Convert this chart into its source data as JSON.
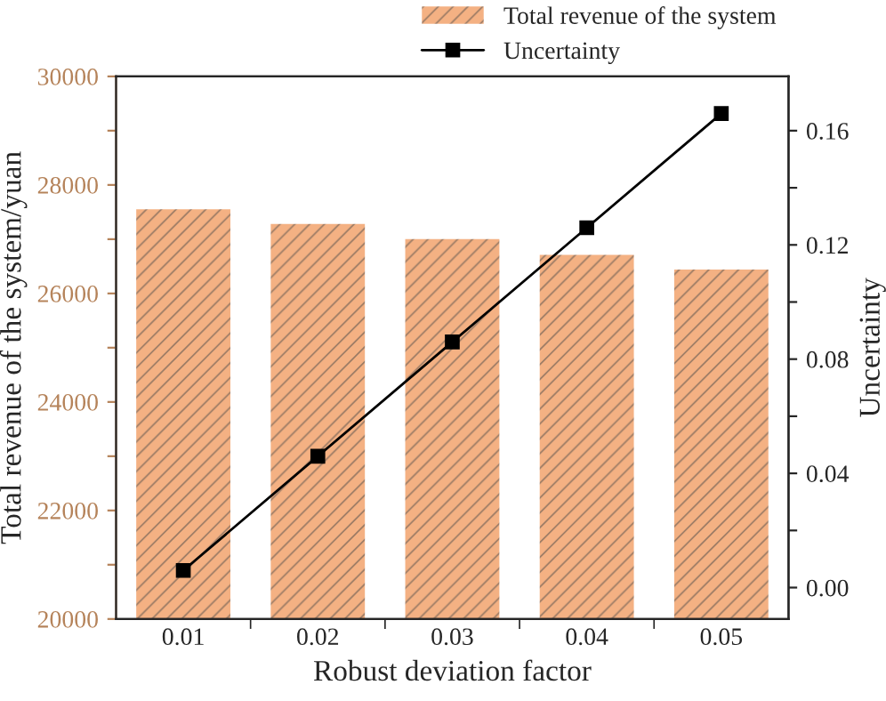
{
  "chart_data": {
    "type": "bar",
    "xlabel": "Robust deviation factor",
    "ylabel": "Total revenue of the system/yuan",
    "y2label": "Uncertainty",
    "categories": [
      "0.01",
      "0.02",
      "0.03",
      "0.04",
      "0.05"
    ],
    "series": [
      {
        "name": "Total revenue of the system",
        "type": "bar",
        "color": "#f4b183",
        "values": [
          27550,
          27280,
          27000,
          26710,
          26440
        ]
      },
      {
        "name": "Uncertainty",
        "type": "line",
        "axis": "y2",
        "color": "#000000",
        "marker": "square",
        "line_style": "solid",
        "values": [
          0.006,
          0.046,
          0.086,
          0.126,
          0.166
        ]
      }
    ],
    "ylim": [
      20000,
      30000
    ],
    "yticks": [
      20000,
      {
        "value": 21000,
        "label": null
      },
      22000,
      {
        "value": 23000,
        "label": null
      },
      24000,
      {
        "value": 25000,
        "label": null
      },
      26000,
      {
        "value": 27000,
        "label": null
      },
      28000,
      {
        "value": 29000,
        "label": null
      },
      30000
    ],
    "y2lim": [
      -0.011,
      0.179
    ],
    "y2ticks": [
      {
        "value": 0,
        "label": "0.00"
      },
      {
        "value": 0.02,
        "label": null
      },
      {
        "value": 0.04,
        "label": "0.04"
      },
      {
        "value": 0.06,
        "label": null
      },
      {
        "value": 0.08,
        "label": "0.08"
      },
      {
        "value": 0.1,
        "label": null
      },
      {
        "value": 0.12,
        "label": "0.12"
      },
      {
        "value": 0.14,
        "label": null
      },
      {
        "value": 0.16,
        "label": "0.16"
      }
    ],
    "legend": "top right",
    "grid": false
  }
}
